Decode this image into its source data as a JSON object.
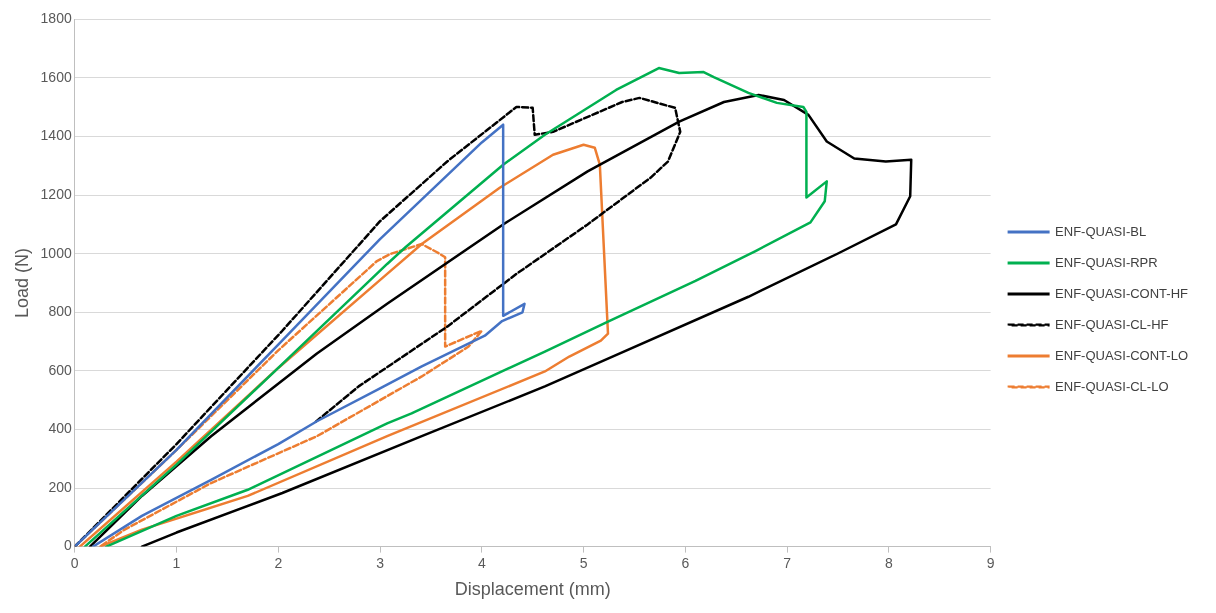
{
  "chart_data": {
    "type": "line",
    "xlabel": "Displacement (mm)",
    "ylabel": "Load (N)",
    "xlim": [
      0,
      9
    ],
    "xticks": [
      0,
      1,
      2,
      3,
      4,
      5,
      6,
      7,
      8,
      9
    ],
    "ylim": [
      0,
      1800
    ],
    "yticks": [
      0,
      200,
      400,
      600,
      800,
      1000,
      1200,
      1400,
      1600,
      1800
    ],
    "grid": "y",
    "legend": "right",
    "marker": "none",
    "series": [
      {
        "name": "ENF-QUASI-BL",
        "color": "#4472c4",
        "line_style": "solid",
        "x": [
          0,
          1,
          2,
          3,
          4,
          4.21,
          4.21,
          4.42,
          4.4,
          4.2,
          4.03,
          3.41,
          3,
          2.38,
          2,
          1.34,
          0.66,
          0.18
        ],
        "values": [
          0,
          330,
          690,
          1050,
          1380,
          1440,
          788,
          829,
          800,
          770,
          720,
          615,
          540,
          428,
          350,
          228,
          105,
          0
        ]
      },
      {
        "name": "ENF-QUASI-RPR",
        "color": "#00b050",
        "line_style": "solid",
        "x": [
          0.1,
          1,
          2,
          3.07,
          3.25,
          4.21,
          4.62,
          5.32,
          5.74,
          5.94,
          6.18,
          6.28,
          6.62,
          6.9,
          7.16,
          7.19,
          7.19,
          7.39,
          7.37,
          7.23,
          6.69,
          6.1,
          5.24,
          4.62,
          3.31,
          3.07,
          1.7,
          1,
          0.31
        ],
        "values": [
          0,
          280,
          610,
          965,
          1022,
          1304,
          1406,
          1559,
          1634,
          1617,
          1620,
          1603,
          1549,
          1515,
          1501,
          1484,
          1192,
          1247,
          1179,
          1107,
          1009,
          907,
          768,
          666,
          455,
          421,
          194,
          105,
          0
        ]
      },
      {
        "name": "ENF-QUASI-CONT-HF",
        "color": "#000000",
        "line_style": "solid",
        "x": [
          0.15,
          0.66,
          1.34,
          2.38,
          3.07,
          4.21,
          5.04,
          5.94,
          6.38,
          6.72,
          6.97,
          7.21,
          7.39,
          7.66,
          7.97,
          8.22,
          8.21,
          8.07,
          7.49,
          6.62,
          5.24,
          4.62,
          3.41,
          2.04,
          1,
          0.66
        ],
        "values": [
          0,
          173,
          377,
          659,
          829,
          1100,
          1281,
          1451,
          1518,
          1542,
          1525,
          1474,
          1383,
          1325,
          1315,
          1321,
          1196,
          1100,
          999,
          853,
          642,
          547,
          377,
          183,
          48,
          0
        ]
      },
      {
        "name": "ENF-QUASI-CL-HF",
        "color": "#000000",
        "line_style": "dashed",
        "x": [
          0,
          1,
          2.04,
          3,
          3.66,
          4.34,
          4.5,
          4.52,
          4.7,
          5.38,
          5.55,
          5.9,
          5.95,
          5.83,
          5.66,
          5.04,
          4.34,
          3.66,
          2.79,
          2.35
        ],
        "values": [
          0,
          350,
          737,
          1111,
          1315,
          1501,
          1498,
          1406,
          1416,
          1518,
          1532,
          1498,
          1416,
          1315,
          1260,
          1100,
          931,
          751,
          547,
          421
        ]
      },
      {
        "name": "ENF-QUASI-CONT-LO",
        "color": "#ed7d31",
        "line_style": "solid",
        "x": [
          0.05,
          1,
          2,
          3.07,
          3.41,
          4.18,
          4.7,
          5,
          5.11,
          5.16,
          5.24,
          5.17,
          4.86,
          4.62,
          3.07,
          1.7,
          0.66,
          0.25
        ],
        "values": [
          0,
          290,
          610,
          931,
          1033,
          1226,
          1338,
          1372,
          1362,
          1304,
          727,
          703,
          649,
          598,
          377,
          173,
          58,
          0
        ]
      },
      {
        "name": "ENF-QUASI-CL-LO",
        "color": "#ed7d31",
        "line_style": "dashed",
        "x": [
          0,
          1,
          2,
          2.97,
          3.1,
          3.41,
          3.56,
          3.64,
          3.64,
          4,
          3.87,
          3.41,
          2.38,
          1.34,
          0.49,
          0.25
        ],
        "values": [
          0,
          330,
          670,
          975,
          999,
          1033,
          1005,
          988,
          683,
          737,
          683,
          581,
          377,
          217,
          58,
          0
        ]
      }
    ]
  }
}
